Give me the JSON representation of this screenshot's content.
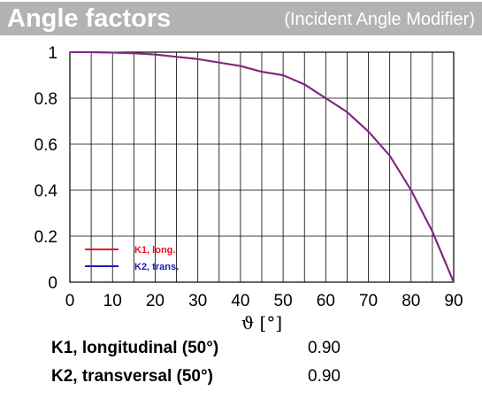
{
  "header": {
    "title": "Angle factors",
    "subtitle": "(Incident Angle Modifier)"
  },
  "chart_data": {
    "type": "line",
    "x": [
      0,
      5,
      10,
      15,
      20,
      25,
      30,
      35,
      40,
      45,
      50,
      55,
      60,
      65,
      70,
      75,
      80,
      85,
      90
    ],
    "series": [
      {
        "name": "K1, long.",
        "color": "#e8101e",
        "values": [
          1.0,
          1.0,
          0.998,
          0.995,
          0.99,
          0.98,
          0.97,
          0.955,
          0.94,
          0.915,
          0.9,
          0.86,
          0.8,
          0.74,
          0.655,
          0.55,
          0.4,
          0.22,
          0.0
        ]
      },
      {
        "name": "K2, trans.",
        "color": "#1a1ab4",
        "values": [
          1.0,
          1.0,
          0.998,
          0.995,
          0.99,
          0.98,
          0.97,
          0.955,
          0.94,
          0.915,
          0.9,
          0.86,
          0.8,
          0.74,
          0.655,
          0.55,
          0.4,
          0.22,
          0.0
        ]
      }
    ],
    "xlabel": "ϑ [°]",
    "ylabel": "",
    "xlim": [
      0,
      90
    ],
    "ylim": [
      0,
      1
    ],
    "xticks": [
      0,
      10,
      20,
      30,
      40,
      50,
      60,
      70,
      80,
      90
    ],
    "xtick_labels": [
      "0",
      "10",
      "20",
      "30",
      "40",
      "50",
      "60",
      "70",
      "80",
      "90"
    ],
    "yticks": [
      0,
      0.2,
      0.4,
      0.6,
      0.8,
      1
    ],
    "ytick_labels": [
      "0",
      "0.2",
      "0.4",
      "0.6",
      "0.8",
      "1"
    ],
    "x_grid_step": 5,
    "grid": true,
    "legend_position": "bottom-left",
    "line_color_combined": "#7a2a88"
  },
  "values": [
    {
      "label": "K1, longitudinal (50°)",
      "value": "0.90"
    },
    {
      "label": "K2, transversal (50°)",
      "value": "0.90"
    }
  ]
}
